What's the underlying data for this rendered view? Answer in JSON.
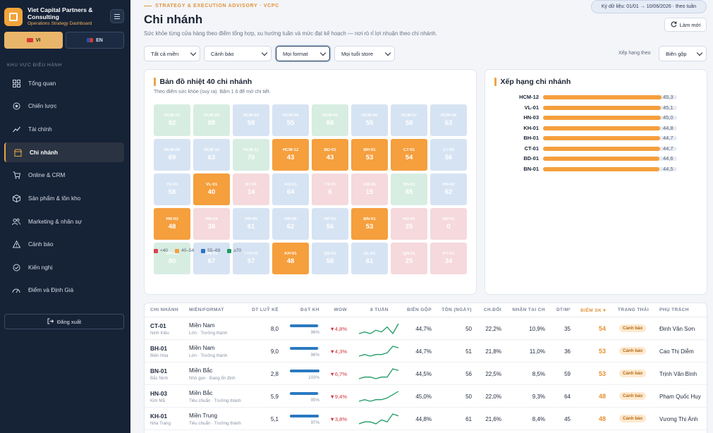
{
  "brand": {
    "name": "Viet Capital Partners & Consulting",
    "subtitle": "Operations Strategy Dashboard"
  },
  "lang": {
    "vi": "VI",
    "en": "EN",
    "active": "VI"
  },
  "sidebar": {
    "section_label": "KHU VỰC ĐIỀU HÀNH",
    "items": [
      {
        "label": "Tổng quan",
        "icon": "grid-icon"
      },
      {
        "label": "Chiến lược",
        "icon": "target-icon"
      },
      {
        "label": "Tài chính",
        "icon": "trend-icon"
      },
      {
        "label": "Chi nhánh",
        "icon": "store-icon",
        "active": true
      },
      {
        "label": "Online & CRM",
        "icon": "cart-icon"
      },
      {
        "label": "Sản phẩm & tồn kho",
        "icon": "box-icon"
      },
      {
        "label": "Marketing & nhân sự",
        "icon": "users-icon"
      },
      {
        "label": "Cảnh báo",
        "icon": "warning-icon"
      },
      {
        "label": "Kiến nghị",
        "icon": "check-circle-icon"
      },
      {
        "label": "Điểm và Định Giá",
        "icon": "gauge-icon"
      }
    ],
    "logout_label": "Đăng xuất"
  },
  "header": {
    "eyebrow": "STRATEGY & EXECUTION ADVISORY · VCPC",
    "title": "Chi nhánh",
    "description": "Sức khỏe từng cửa hàng theo điểm tổng hợp, xu hướng tuần và mức đạt kế hoạch — nơi rò rỉ lợi nhuận theo chi nhánh.",
    "period": "Kỳ dữ liệu: 01/01 → 10/06/2026 · theo tuần",
    "refresh_label": "Làm mới"
  },
  "filters": {
    "region": "Tất cả miền",
    "alert": "Cảnh báo",
    "format": "Mọi format",
    "age": "Mọi tuổi store",
    "rank_by_label": "Xếp hạng theo",
    "rank_by": "Biên gộp"
  },
  "heatmap": {
    "title": "Bản đồ nhiệt 40 chi nhánh",
    "subtitle": "Theo điểm sức khỏe (suy ra). Bấm 1 ô để mở chi tiết.",
    "tiles": [
      {
        "code": "HCM-01",
        "score": "92",
        "tone": "green"
      },
      {
        "code": "HCM-02",
        "score": "88",
        "tone": "green"
      },
      {
        "code": "HCM-03",
        "score": "59",
        "tone": "blue"
      },
      {
        "code": "HCM-04",
        "score": "55",
        "tone": "blue"
      },
      {
        "code": "HCM-05",
        "score": "88",
        "tone": "green"
      },
      {
        "code": "HCM-06",
        "score": "55",
        "tone": "blue"
      },
      {
        "code": "HCM-07",
        "score": "58",
        "tone": "blue"
      },
      {
        "code": "HCM-08",
        "score": "63",
        "tone": "blue"
      },
      {
        "code": "HCM-09",
        "score": "69",
        "tone": "blue"
      },
      {
        "code": "HCM-10",
        "score": "63",
        "tone": "blue"
      },
      {
        "code": "HCM-11",
        "score": "70",
        "tone": "green"
      },
      {
        "code": "HCM-12",
        "score": "43",
        "tone": "orange"
      },
      {
        "code": "BD-01",
        "score": "43",
        "tone": "orange"
      },
      {
        "code": "BH-01",
        "score": "53",
        "tone": "orange"
      },
      {
        "code": "CT-01",
        "score": "54",
        "tone": "orange"
      },
      {
        "code": "CT-02",
        "score": "56",
        "tone": "blue"
      },
      {
        "code": "TG-01",
        "score": "58",
        "tone": "blue"
      },
      {
        "code": "VL-01",
        "score": "40",
        "tone": "orange"
      },
      {
        "code": "BT-01",
        "score": "14",
        "tone": "red"
      },
      {
        "code": "AG-01",
        "score": "64",
        "tone": "blue"
      },
      {
        "code": "TV-01",
        "score": "6",
        "tone": "red"
      },
      {
        "code": "CM-01",
        "score": "15",
        "tone": "red"
      },
      {
        "code": "HN-01",
        "score": "85",
        "tone": "green"
      },
      {
        "code": "HN-02",
        "score": "62",
        "tone": "blue"
      },
      {
        "code": "HN-03",
        "score": "48",
        "tone": "orange"
      },
      {
        "code": "HN-04",
        "score": "38",
        "tone": "red"
      },
      {
        "code": "HN-05",
        "score": "61",
        "tone": "blue"
      },
      {
        "code": "HN-06",
        "score": "62",
        "tone": "blue"
      },
      {
        "code": "HP-01",
        "score": "56",
        "tone": "blue"
      },
      {
        "code": "BN-01",
        "score": "53",
        "tone": "orange"
      },
      {
        "code": "HD-01",
        "score": "25",
        "tone": "red"
      },
      {
        "code": "ND-01",
        "score": "0",
        "tone": "red"
      },
      {
        "code": "DN-01",
        "score": "90",
        "tone": "green"
      },
      {
        "code": "DN-02",
        "score": "67",
        "tone": "blue"
      },
      {
        "code": "TTH-01",
        "score": "57",
        "tone": "blue"
      },
      {
        "code": "KH-01",
        "score": "48",
        "tone": "orange"
      },
      {
        "code": "QB-01",
        "score": "58",
        "tone": "blue"
      },
      {
        "code": "DL-01",
        "score": "61",
        "tone": "blue"
      },
      {
        "code": "QN-01",
        "score": "25",
        "tone": "red"
      },
      {
        "code": "PY-01",
        "score": "34",
        "tone": "red"
      }
    ],
    "legend": [
      {
        "label": "<40",
        "color": "#d9434d"
      },
      {
        "label": "40–54",
        "color": "#f59f3d"
      },
      {
        "label": "55–69",
        "color": "#2d72c4"
      },
      {
        "label": "≥70",
        "color": "#1f9a63"
      }
    ]
  },
  "ranking": {
    "title": "Xếp hạng chi nhánh",
    "rows": [
      {
        "name": "HCM-12",
        "value": "45,3",
        "v": 45.3
      },
      {
        "name": "VL-01",
        "value": "45,1",
        "v": 45.1
      },
      {
        "name": "HN-03",
        "value": "45,0",
        "v": 45.0
      },
      {
        "name": "KH-01",
        "value": "44,8",
        "v": 44.8
      },
      {
        "name": "BH-01",
        "value": "44,7",
        "v": 44.7
      },
      {
        "name": "CT-01",
        "value": "44,7",
        "v": 44.7
      },
      {
        "name": "BD-01",
        "value": "44,6",
        "v": 44.6
      },
      {
        "name": "BN-01",
        "value": "44,5",
        "v": 44.5
      }
    ]
  },
  "table": {
    "headers": [
      "CHI NHÁNH",
      "MIỀN/FORMAT",
      "DT LUỸ KẾ",
      "ĐẠT KH",
      "WOW",
      "8 TUẦN",
      "BIÊN GỘP",
      "TỒN (NGÀY)",
      "CH.ĐỔI",
      "NHẬN TẠI CH",
      "DT/M²",
      "ĐIỂM SK ▾",
      "TRẠNG THÁI",
      "PHỤ TRÁCH"
    ],
    "rows": [
      {
        "code": "CT-01",
        "city": "Ninh Kiều",
        "region": "Miền Nam",
        "format": "Lớn · Trưởng thành",
        "revenue": "8,0",
        "plan": "96%",
        "plan_pct": 96,
        "wow": "▼4,8%",
        "spark": [
          3,
          4,
          3,
          5,
          4,
          7,
          3,
          9
        ],
        "margin": "44,7%",
        "stock": "50",
        "conv": "22,2%",
        "pickup": "10,9%",
        "dtm2": "35",
        "score": "54",
        "status": "Cảnh báo",
        "owner": "Đinh Văn Sơn"
      },
      {
        "code": "BH-01",
        "city": "Biên Hòa",
        "region": "Miền Nam",
        "format": "Lớn · Trưởng thành",
        "revenue": "9,0",
        "plan": "96%",
        "plan_pct": 96,
        "wow": "▼4,3%",
        "spark": [
          3,
          4,
          3,
          4,
          4,
          5,
          9,
          8
        ],
        "margin": "44,7%",
        "stock": "51",
        "conv": "21,8%",
        "pickup": "11,0%",
        "dtm2": "36",
        "score": "53",
        "status": "Cảnh báo",
        "owner": "Cao Thị Diễm"
      },
      {
        "code": "BN-01",
        "city": "Bắc Ninh",
        "region": "Miền Bắc",
        "format": "Nhỏ gọn · Đang ổn định",
        "revenue": "2,8",
        "plan": "103%",
        "plan_pct": 100,
        "wow": "▼6,7%",
        "spark": [
          3,
          4,
          4,
          3,
          4,
          4,
          9,
          8
        ],
        "margin": "44,5%",
        "stock": "56",
        "conv": "22,5%",
        "pickup": "8,5%",
        "dtm2": "59",
        "score": "53",
        "status": "Cảnh báo",
        "owner": "Trịnh Văn Bình"
      },
      {
        "code": "HN-03",
        "city": "Kim Mã",
        "region": "Miền Bắc",
        "format": "Tiêu chuẩn · Trưởng thành",
        "revenue": "5,9",
        "plan": "95%",
        "plan_pct": 95,
        "wow": "▼9,4%",
        "spark": [
          3,
          4,
          3,
          4,
          4,
          5,
          7,
          9
        ],
        "margin": "45,0%",
        "stock": "50",
        "conv": "22,0%",
        "pickup": "9,3%",
        "dtm2": "64",
        "score": "48",
        "status": "Cảnh báo",
        "owner": "Phạm Quốc Huy"
      },
      {
        "code": "KH-01",
        "city": "Nha Trang",
        "region": "Miền Trung",
        "format": "Tiêu chuẩn · Trưởng thành",
        "revenue": "5,1",
        "plan": "97%",
        "plan_pct": 97,
        "wow": "▼3,8%",
        "spark": [
          3,
          4,
          4,
          3,
          5,
          4,
          8,
          7
        ],
        "margin": "44,8%",
        "stock": "61",
        "conv": "21,6%",
        "pickup": "8,4%",
        "dtm2": "45",
        "score": "48",
        "status": "Cảnh báo",
        "owner": "Vương Thị Ánh"
      }
    ]
  }
}
